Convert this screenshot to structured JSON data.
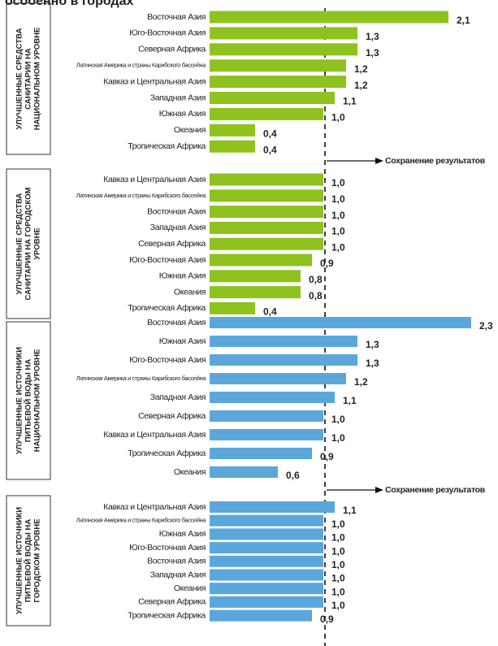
{
  "title": "особенно в городах",
  "chart_data": [
    {
      "type": "bar",
      "label_lines": [
        "УЛУЧШЕННЫЕ СРЕДСТВА",
        "САНИТАРИИ НА",
        "НАЦИОНАЛЬНОМ УРОВНЕ"
      ],
      "color": "#8dc21f",
      "categories": [
        "Восточная Азия",
        "Юго-Восточная Азия",
        "Северная Африка",
        "Латинская Америка и страны Карибского бассейна",
        "Кавказ и Центральная Азия",
        "Западная Азия",
        "Южная Азия",
        "Океания",
        "Тропическая Африка"
      ],
      "values": [
        2.1,
        1.3,
        1.3,
        1.2,
        1.2,
        1.1,
        1.0,
        0.4,
        0.4
      ],
      "value_labels": [
        "2,1",
        "1,3",
        "1,3",
        "1,2",
        "1,2",
        "1,1",
        "1,0",
        "0,4",
        "0,4"
      ],
      "annotation": "Сохранение результатов"
    },
    {
      "type": "bar",
      "label_lines": [
        "УЛУЧШЕННЫЕ СРЕДСТВА",
        "САНИТАРИИ НА ГОРОДСКОМ",
        "УРОВНЕ"
      ],
      "color": "#8dc21f",
      "categories": [
        "Кавказ и Центральная Азия",
        "Латинская Америка и страны Карибского бассейна",
        "Восточная Азия",
        "Западная Азия",
        "Северная Африка",
        "Юго-Восточная Азия",
        "Южная Азия",
        "Океания",
        "Тропическая Африка"
      ],
      "values": [
        1.0,
        1.0,
        1.0,
        1.0,
        1.0,
        0.9,
        0.8,
        0.8,
        0.4
      ],
      "value_labels": [
        "1,0",
        "1,0",
        "1,0",
        "1,0",
        "1,0",
        "0,9",
        "0,8",
        "0,8",
        "0,4"
      ]
    },
    {
      "type": "bar",
      "label_lines": [
        "УЛУЧШЕННЫЕ ИСТОЧНИКИ",
        "ПИТЬЕВОЙ ВОДЫ НА",
        "НАЦИОНАЛЬНОМ УРОВНЕ"
      ],
      "color": "#5ba7dc",
      "categories": [
        "Восточная Азия",
        "Южная Азия",
        "Юго-Восточная Азия",
        "Латинская Америка и страны Карибского бассейна",
        "Западная Азия",
        "Северная Африка",
        "Кавказ и Центральная Азия",
        "Тропическая Африка",
        "Океания"
      ],
      "values": [
        2.3,
        1.3,
        1.3,
        1.2,
        1.1,
        1.0,
        1.0,
        0.9,
        0.6
      ],
      "value_labels": [
        "2,3",
        "1,3",
        "1,3",
        "1,2",
        "1,1",
        "1,0",
        "1,0",
        "0,9",
        "0,6"
      ],
      "annotation": "Сохранение результатов"
    },
    {
      "type": "bar",
      "label_lines": [
        "УЛУЧШЕННЫЕ ИСТОЧНИКИ",
        "ПИТЬЕВОЙ ВОДЫ НА",
        "ГОРОДСКОМ УРОВНЕ"
      ],
      "color": "#5ba7dc",
      "categories": [
        "Кавказ и Центральная Азия",
        "Латинская Америка и страны Карибского бассейна",
        "Южная Азия",
        "Юго-Восточная Азия",
        "Восточная Азия",
        "Западная Азия",
        "Океания",
        "Северная Африка",
        "Тропическая Африка"
      ],
      "values": [
        1.1,
        1.0,
        1.0,
        1.0,
        1.0,
        1.0,
        1.0,
        1.0,
        0.9
      ],
      "value_labels": [
        "1,1",
        "1,0",
        "1,0",
        "1,0",
        "1,0",
        "1,0",
        "1,0",
        "1,0",
        "0,9"
      ]
    }
  ]
}
